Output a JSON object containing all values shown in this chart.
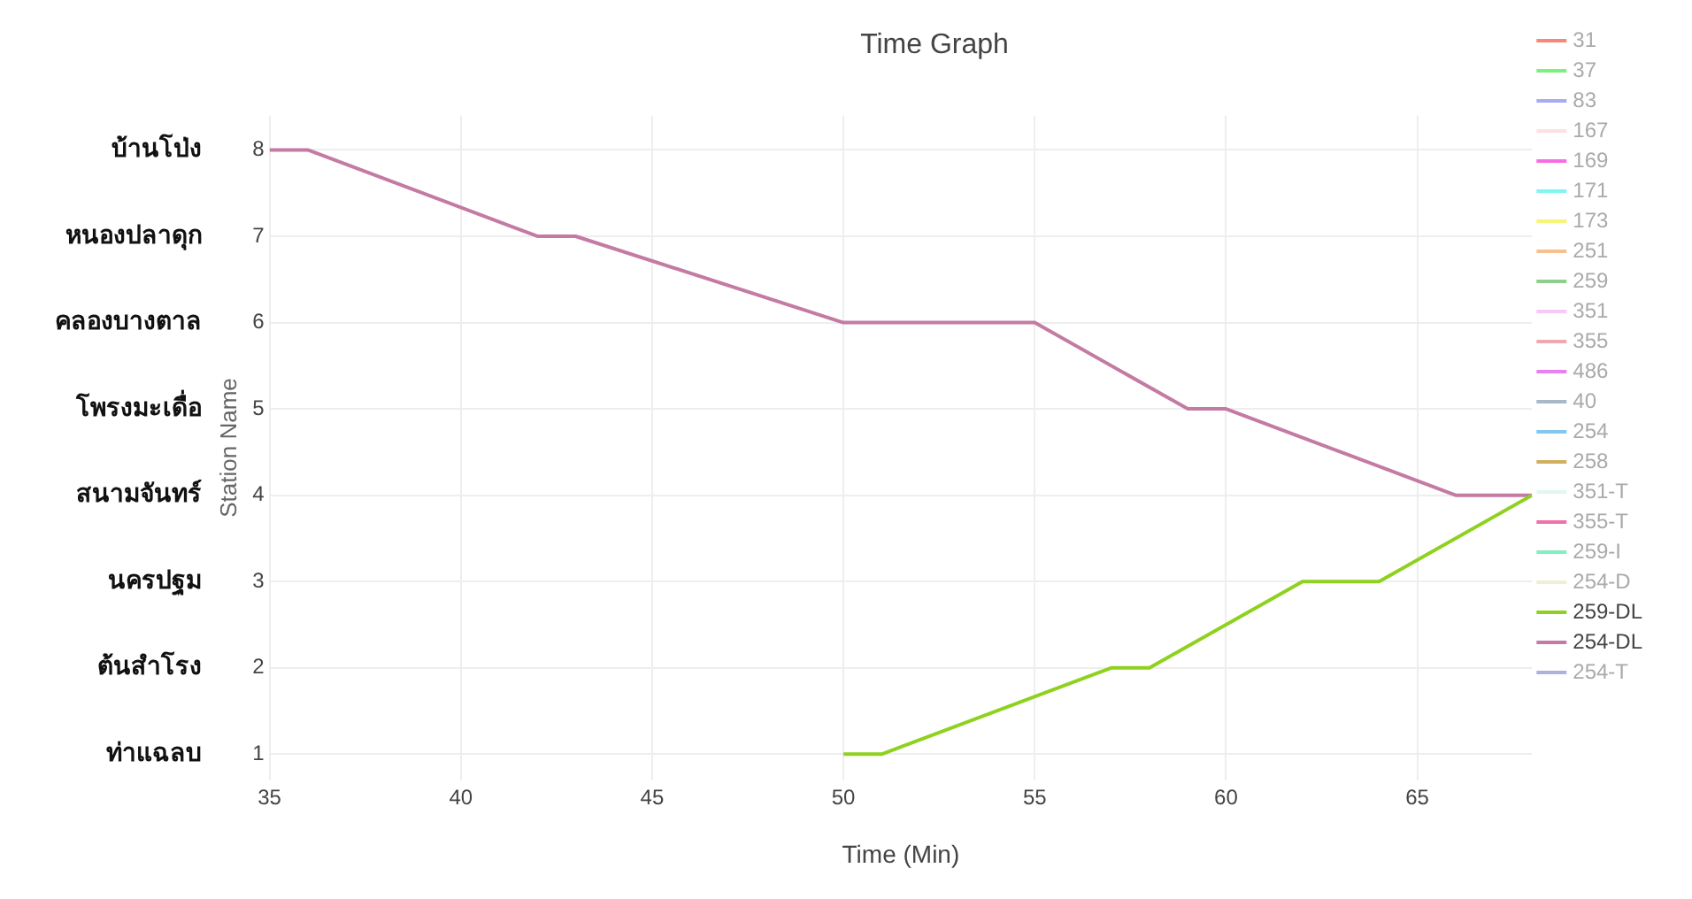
{
  "chart_data": {
    "type": "line",
    "title": "Time Graph",
    "xlabel": "Time (Min)",
    "ylabel": "Station Name",
    "xlim": [
      35,
      68
    ],
    "xticks": [
      35,
      40,
      45,
      50,
      55,
      60,
      65
    ],
    "ylim": [
      0.7,
      8.4
    ],
    "yticks": [
      1,
      2,
      3,
      4,
      5,
      6,
      7,
      8
    ],
    "annotations": [
      "ท่าแฉลบ",
      "ต้นสำโรง",
      "นครปฐม",
      "สนามจันทร์",
      "โพรงมะเดื่อ",
      "คลองบางตาล",
      "หนองปลาดุก",
      "บ้านโป่ง"
    ],
    "grid": true,
    "legend": "right",
    "marker": "none",
    "line_style": "solid",
    "series": [
      {
        "name": "31",
        "color": "#f8877a"
      },
      {
        "name": "37",
        "color": "#7ef07e"
      },
      {
        "name": "83",
        "color": "#a9a9f5"
      },
      {
        "name": "167",
        "color": "#ffe0e0"
      },
      {
        "name": "169",
        "color": "#f86ee0"
      },
      {
        "name": "171",
        "color": "#80f5f5"
      },
      {
        "name": "173",
        "color": "#f5f57a"
      },
      {
        "name": "251",
        "color": "#f8c090"
      },
      {
        "name": "259",
        "color": "#8fce8f"
      },
      {
        "name": "351",
        "color": "#f8c8f8"
      },
      {
        "name": "355",
        "color": "#f0a8b0"
      },
      {
        "name": "486",
        "color": "#e880f0"
      },
      {
        "name": "40",
        "color": "#a8b8c8"
      },
      {
        "name": "254",
        "color": "#80c8f0"
      },
      {
        "name": "258",
        "color": "#d0b060"
      },
      {
        "name": "351-T",
        "color": "#e0f8f0"
      },
      {
        "name": "355-T",
        "color": "#f070a8"
      },
      {
        "name": "259-I",
        "color": "#80f0c0"
      },
      {
        "name": "254-D",
        "color": "#f0f0d0"
      },
      {
        "name": "259-DL",
        "color": "#8fd11f",
        "x": [
          50,
          51,
          57,
          58,
          62,
          64,
          68
        ],
        "values": [
          1,
          1,
          2,
          2,
          3,
          3,
          4
        ]
      },
      {
        "name": "254-DL",
        "color": "#c47ba3",
        "x": [
          35,
          36,
          42,
          43,
          50,
          55,
          59,
          60,
          66,
          68
        ],
        "values": [
          8,
          8,
          7,
          7,
          6,
          6,
          5,
          5,
          4,
          4
        ]
      },
      {
        "name": "254-T",
        "color": "#b0b0e0"
      }
    ]
  }
}
